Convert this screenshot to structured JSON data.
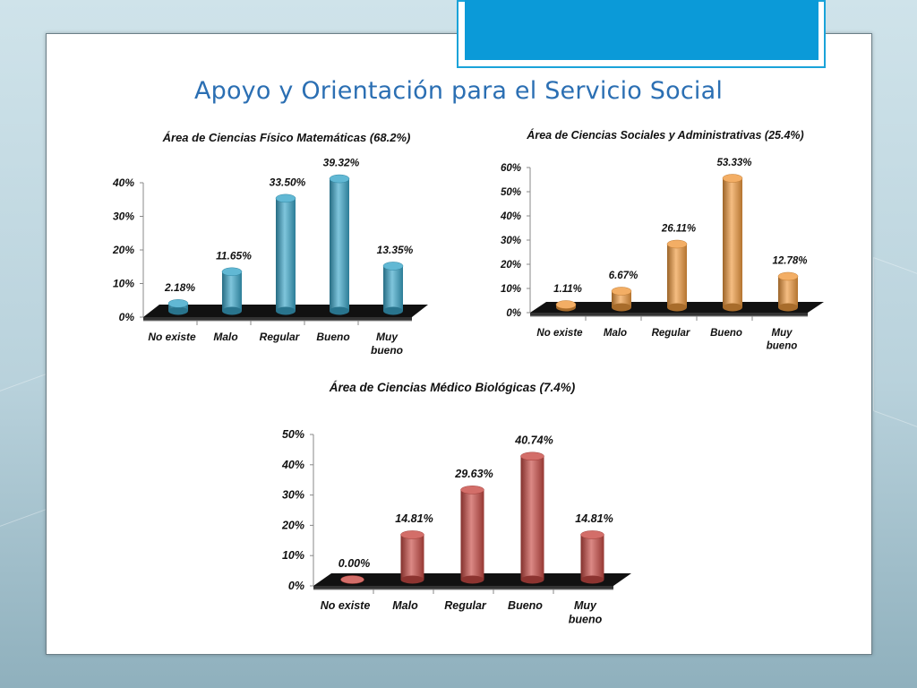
{
  "slide": {
    "title": "Apoyo y Orientación para el Servicio Social"
  },
  "colors": {
    "fisico": "#3aa6c9",
    "sociales": "#f09a3e",
    "medico": "#c84a44",
    "floor": "#111111",
    "title": "#2b6fb3"
  },
  "chart_data": [
    {
      "type": "bar",
      "title": "Área de Ciencias Físico Matemáticas   (68.2%)",
      "categories": [
        "No existe",
        "Malo",
        "Regular",
        "Bueno",
        "Muy bueno"
      ],
      "values": [
        2.18,
        11.65,
        33.5,
        39.32,
        13.35
      ],
      "data_labels": [
        "2.18%",
        "11.65%",
        "33.50%",
        "39.32%",
        "13.35%"
      ],
      "yticks": [
        "0%",
        "10%",
        "20%",
        "30%",
        "40%"
      ],
      "ylim": [
        0,
        40
      ],
      "grid": false,
      "color": "#3aa6c9"
    },
    {
      "type": "bar",
      "title": "Área de Ciencias Sociales y Administrativas  (25.4%)",
      "categories": [
        "No existe",
        "Malo",
        "Regular",
        "Bueno",
        "Muy bueno"
      ],
      "values": [
        1.11,
        6.67,
        26.11,
        53.33,
        12.78
      ],
      "data_labels": [
        "1.11%",
        "6.67%",
        "26.11%",
        "53.33%",
        "12.78%"
      ],
      "yticks": [
        "0%",
        "10%",
        "20%",
        "30%",
        "40%",
        "50%",
        "60%"
      ],
      "ylim": [
        0,
        60
      ],
      "grid": false,
      "color": "#f09a3e"
    },
    {
      "type": "bar",
      "title": "Área de Ciencias Médico Biológicas    (7.4%)",
      "categories": [
        "No existe",
        "Malo",
        "Regular",
        "Bueno",
        "Muy bueno"
      ],
      "values": [
        0.0,
        14.81,
        29.63,
        40.74,
        14.81
      ],
      "data_labels": [
        "0.00%",
        "14.81%",
        "29.63%",
        "40.74%",
        "14.81%"
      ],
      "yticks": [
        "0%",
        "10%",
        "20%",
        "30%",
        "40%",
        "50%"
      ],
      "ylim": [
        0,
        50
      ],
      "grid": false,
      "color": "#c84a44"
    }
  ]
}
